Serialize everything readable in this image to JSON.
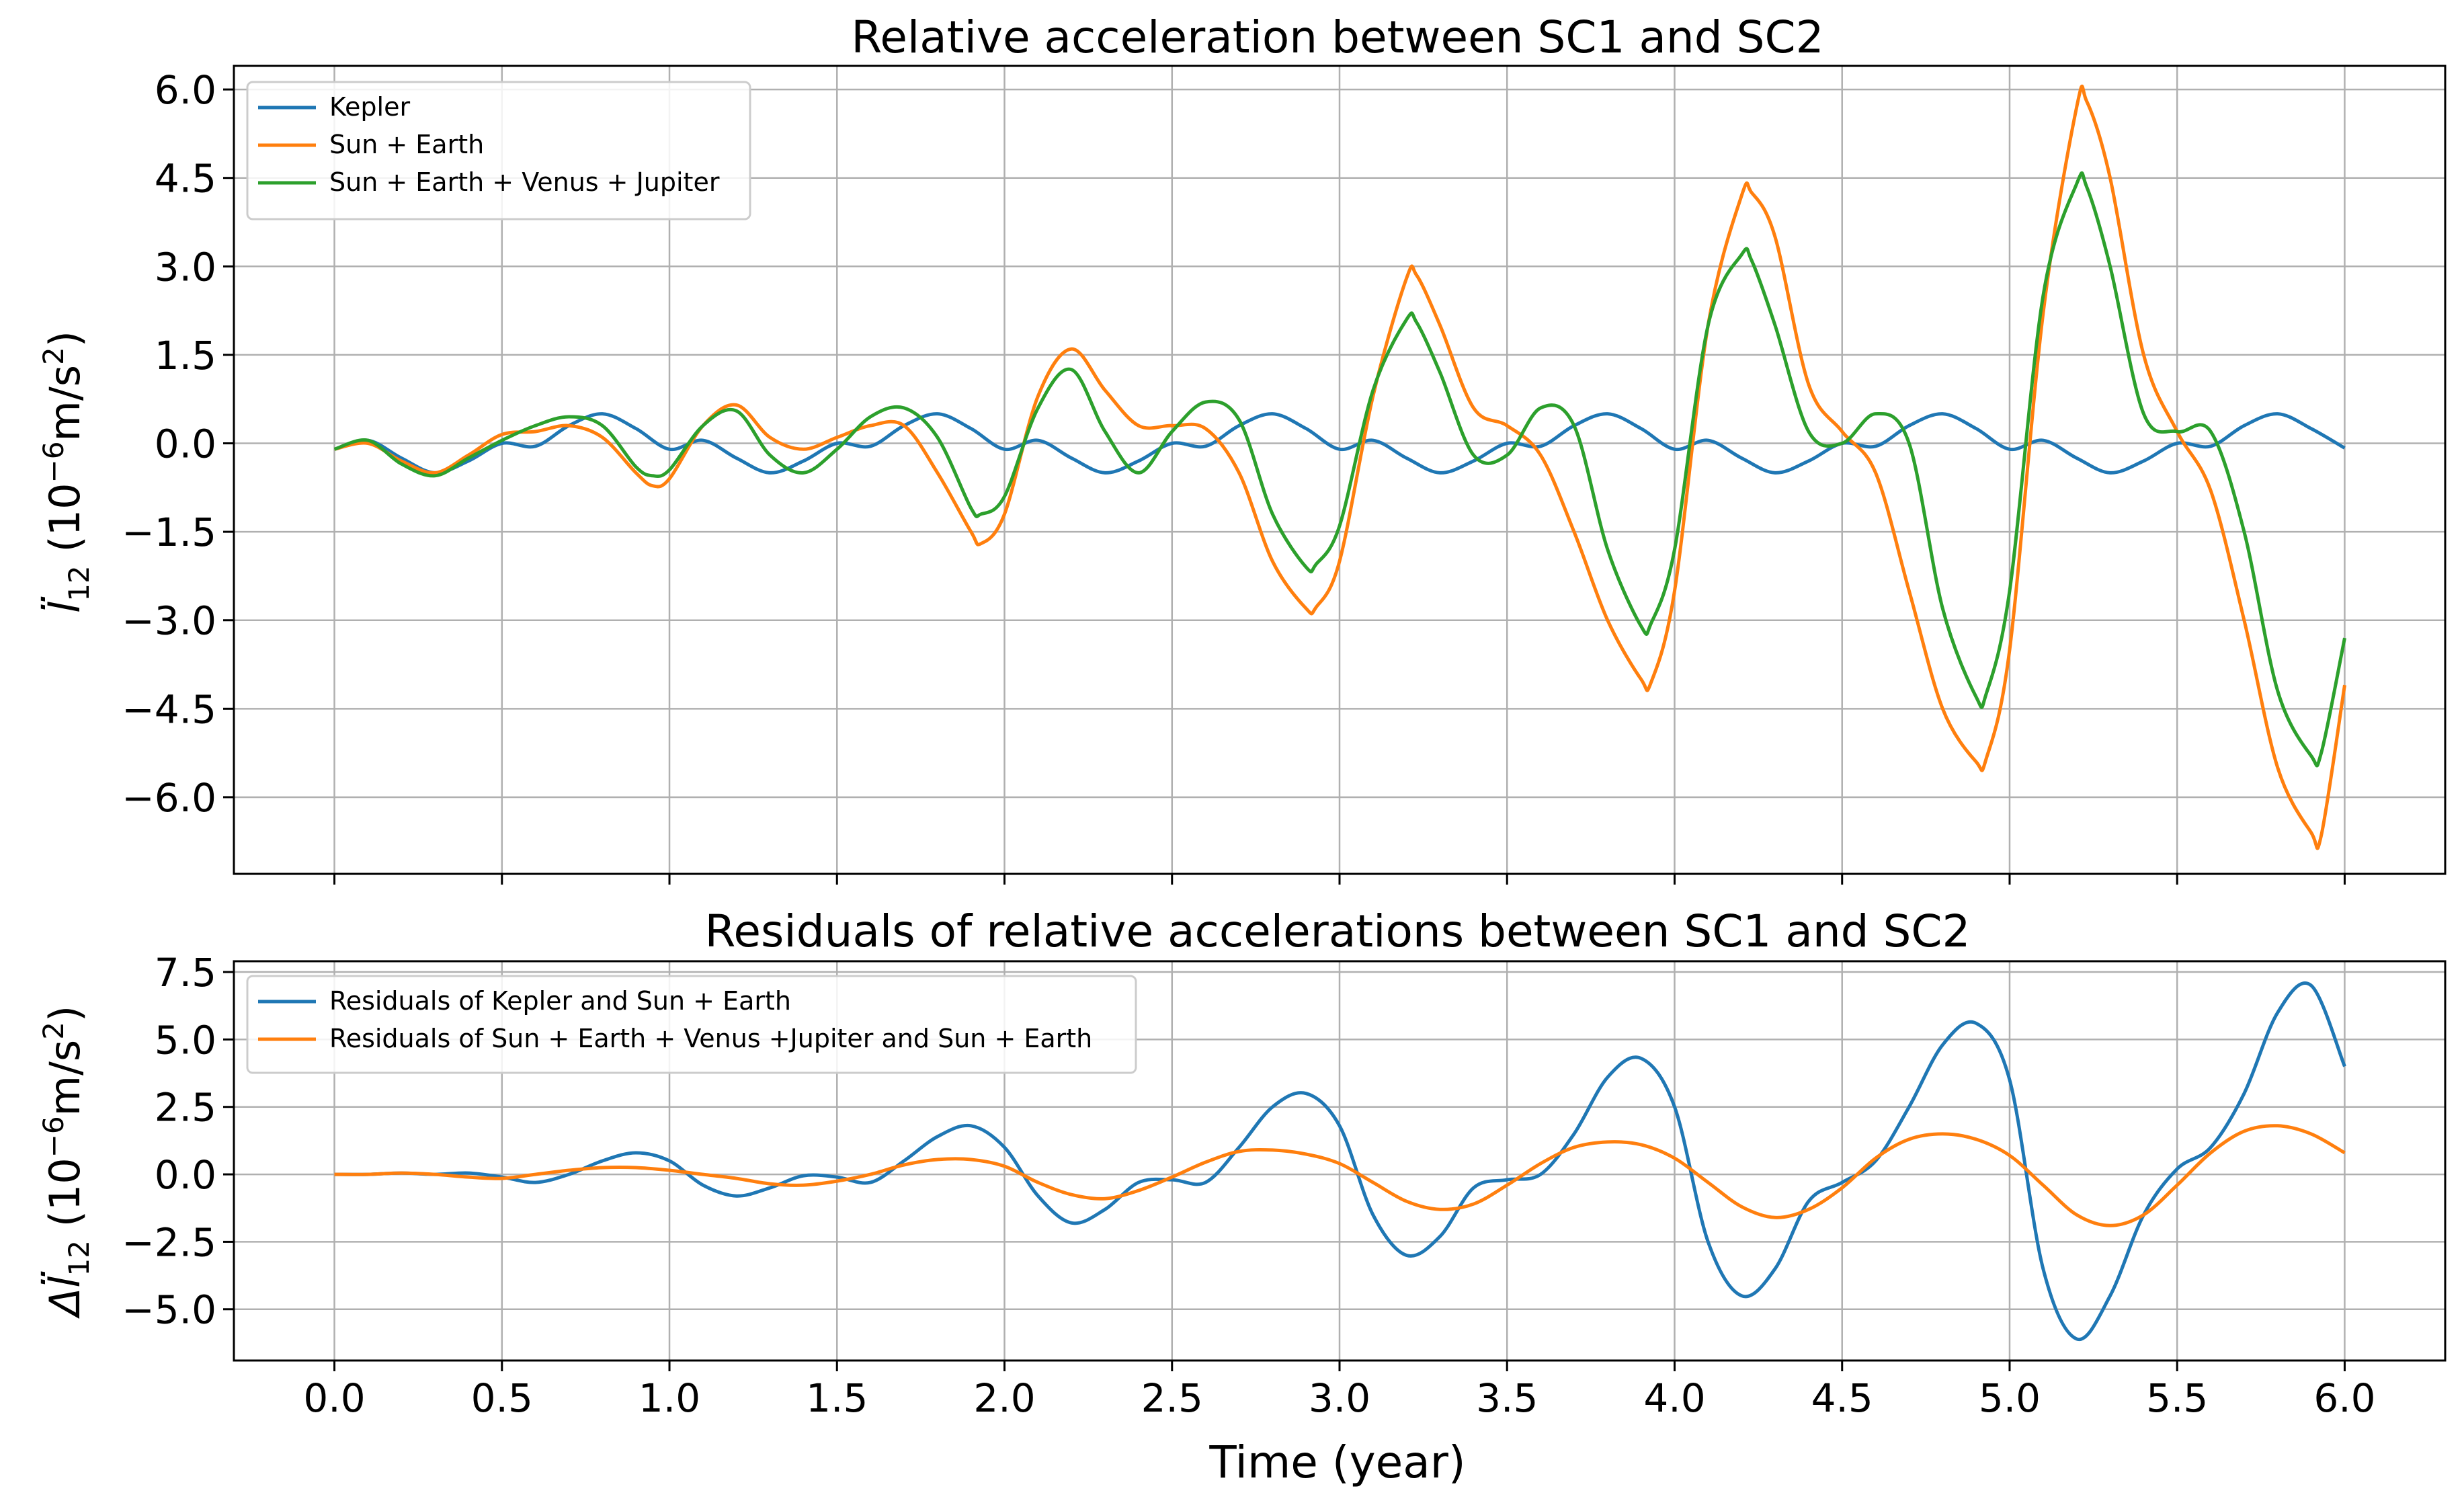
{
  "colors": {
    "blue": "#1f77b4",
    "orange": "#ff7f0e",
    "green": "#2ca02c",
    "grid": "#b0b0b0"
  },
  "chart_data": [
    {
      "type": "line",
      "title": "Relative acceleration between SC1 and SC2",
      "xlabel": "",
      "ylabel_main": "l̈",
      "ylabel_sub": "12",
      "ylabel_unit_pre": "(10",
      "ylabel_unit_exp": "−6",
      "ylabel_unit_mid": "m/s",
      "ylabel_unit_exp2": "2",
      "ylabel_unit_post": ")",
      "xlim": [
        -0.3,
        6.3
      ],
      "ylim": [
        -7.3,
        6.4
      ],
      "xticks": [
        0.0,
        0.5,
        1.0,
        1.5,
        2.0,
        2.5,
        3.0,
        3.5,
        4.0,
        4.5,
        5.0,
        5.5,
        6.0
      ],
      "yticks": [
        6.0,
        4.5,
        3.0,
        1.5,
        0.0,
        -1.5,
        -3.0,
        -4.5,
        -6.0
      ],
      "ytick_labels": [
        "6.0",
        "4.5",
        "3.0",
        "1.5",
        "0.0",
        "−1.5",
        "−3.0",
        "−4.5",
        "−6.0"
      ],
      "grid": true,
      "legend_position": "upper-left",
      "series": [
        {
          "name": "Kepler",
          "color": "#1f77b4",
          "x": [
            0.0,
            0.1,
            0.2,
            0.3,
            0.4,
            0.5,
            0.6,
            0.7,
            0.8,
            0.9,
            1.0,
            1.1,
            1.2,
            1.3,
            1.4,
            1.5,
            1.6,
            1.7,
            1.8,
            1.9,
            2.0,
            2.1,
            2.2,
            2.3,
            2.4,
            2.5,
            2.6,
            2.7,
            2.8,
            2.9,
            3.0,
            3.1,
            3.2,
            3.3,
            3.4,
            3.5,
            3.6,
            3.7,
            3.8,
            3.9,
            4.0,
            4.1,
            4.2,
            4.3,
            4.4,
            4.5,
            4.6,
            4.7,
            4.8,
            4.9,
            5.0,
            5.1,
            5.2,
            5.3,
            5.4,
            5.5,
            5.6,
            5.7,
            5.8,
            5.9,
            6.0
          ],
          "y": [
            -0.1,
            0.05,
            -0.25,
            -0.5,
            -0.3,
            0.0,
            -0.05,
            0.3,
            0.5,
            0.25,
            -0.1,
            0.05,
            -0.25,
            -0.5,
            -0.3,
            0.0,
            -0.05,
            0.3,
            0.5,
            0.25,
            -0.1,
            0.05,
            -0.25,
            -0.5,
            -0.3,
            0.0,
            -0.05,
            0.3,
            0.5,
            0.25,
            -0.1,
            0.05,
            -0.25,
            -0.5,
            -0.3,
            0.0,
            -0.05,
            0.3,
            0.5,
            0.25,
            -0.1,
            0.05,
            -0.25,
            -0.5,
            -0.3,
            0.0,
            -0.05,
            0.3,
            0.5,
            0.25,
            -0.1,
            0.05,
            -0.25,
            -0.5,
            -0.3,
            0.0,
            -0.05,
            0.3,
            0.5,
            0.25,
            -0.08
          ]
        },
        {
          "name": "Sun + Earth",
          "color": "#ff7f0e",
          "x": [
            0.0,
            0.1,
            0.2,
            0.3,
            0.4,
            0.5,
            0.6,
            0.7,
            0.8,
            0.9,
            0.95,
            1.0,
            1.1,
            1.2,
            1.3,
            1.4,
            1.5,
            1.6,
            1.7,
            1.8,
            1.9,
            1.93,
            2.0,
            2.1,
            2.2,
            2.3,
            2.4,
            2.5,
            2.6,
            2.7,
            2.8,
            2.9,
            2.93,
            3.0,
            3.1,
            3.2,
            3.23,
            3.3,
            3.4,
            3.5,
            3.6,
            3.7,
            3.8,
            3.9,
            3.93,
            4.0,
            4.1,
            4.2,
            4.23,
            4.3,
            4.4,
            4.5,
            4.6,
            4.7,
            4.8,
            4.9,
            4.93,
            5.0,
            5.1,
            5.2,
            5.23,
            5.3,
            5.4,
            5.5,
            5.6,
            5.7,
            5.8,
            5.9,
            5.93,
            6.0
          ],
          "y": [
            -0.1,
            0.0,
            -0.3,
            -0.5,
            -0.2,
            0.15,
            0.2,
            0.3,
            0.1,
            -0.5,
            -0.72,
            -0.6,
            0.3,
            0.65,
            0.1,
            -0.1,
            0.1,
            0.3,
            0.3,
            -0.5,
            -1.5,
            -1.7,
            -1.2,
            0.8,
            1.6,
            0.9,
            0.3,
            0.3,
            0.25,
            -0.5,
            -2.0,
            -2.8,
            -2.78,
            -2.0,
            0.8,
            2.8,
            2.85,
            2.0,
            0.6,
            0.3,
            -0.2,
            -1.5,
            -3.0,
            -4.0,
            -4.05,
            -2.5,
            2.0,
            4.2,
            4.25,
            3.5,
            1.0,
            0.2,
            -0.5,
            -2.5,
            -4.5,
            -5.4,
            -5.35,
            -3.5,
            2.2,
            5.7,
            5.8,
            4.5,
            1.5,
            0.2,
            -0.8,
            -3.0,
            -5.5,
            -6.6,
            -6.65,
            -4.1
          ]
        },
        {
          "name": "Sun + Earth + Venus + Jupiter",
          "color": "#2ca02c",
          "x": [
            0.0,
            0.1,
            0.2,
            0.3,
            0.4,
            0.5,
            0.6,
            0.7,
            0.8,
            0.9,
            0.95,
            1.0,
            1.1,
            1.2,
            1.3,
            1.4,
            1.5,
            1.6,
            1.7,
            1.8,
            1.9,
            1.93,
            2.0,
            2.1,
            2.2,
            2.3,
            2.4,
            2.5,
            2.6,
            2.7,
            2.8,
            2.9,
            2.93,
            3.0,
            3.1,
            3.2,
            3.23,
            3.3,
            3.4,
            3.5,
            3.6,
            3.7,
            3.8,
            3.9,
            3.93,
            4.0,
            4.1,
            4.2,
            4.23,
            4.3,
            4.4,
            4.5,
            4.6,
            4.7,
            4.8,
            4.9,
            4.93,
            5.0,
            5.1,
            5.2,
            5.23,
            5.3,
            5.4,
            5.5,
            5.6,
            5.7,
            5.8,
            5.9,
            5.93,
            6.0
          ],
          "y": [
            -0.1,
            0.05,
            -0.35,
            -0.55,
            -0.25,
            0.05,
            0.3,
            0.45,
            0.3,
            -0.4,
            -0.55,
            -0.45,
            0.3,
            0.55,
            -0.2,
            -0.5,
            -0.1,
            0.45,
            0.6,
            0.1,
            -1.1,
            -1.2,
            -0.9,
            0.6,
            1.25,
            0.2,
            -0.5,
            0.2,
            0.7,
            0.4,
            -1.2,
            -2.1,
            -2.05,
            -1.4,
            0.9,
            2.1,
            2.05,
            1.2,
            -0.2,
            -0.2,
            0.6,
            0.3,
            -1.8,
            -3.1,
            -3.05,
            -1.8,
            2.0,
            3.2,
            3.1,
            2.0,
            0.2,
            0.0,
            0.5,
            0.0,
            -2.8,
            -4.3,
            -4.25,
            -2.5,
            2.5,
            4.4,
            4.35,
            3.0,
            0.5,
            0.2,
            0.2,
            -1.5,
            -4.2,
            -5.3,
            -5.25,
            -3.3
          ]
        }
      ]
    },
    {
      "type": "line",
      "title": "Residuals of relative accelerations between SC1 and SC2",
      "xlabel": "Time (year)",
      "ylabel_main": "Δl̈",
      "ylabel_sub": "12",
      "ylabel_unit_pre": "(10",
      "ylabel_unit_exp": "−6",
      "ylabel_unit_mid": "m/s",
      "ylabel_unit_exp2": "2",
      "ylabel_unit_post": ")",
      "xlim": [
        -0.3,
        6.3
      ],
      "ylim": [
        -6.9,
        7.9
      ],
      "xticks": [
        0.0,
        0.5,
        1.0,
        1.5,
        2.0,
        2.5,
        3.0,
        3.5,
        4.0,
        4.5,
        5.0,
        5.5,
        6.0
      ],
      "xtick_labels": [
        "0.0",
        "0.5",
        "1.0",
        "1.5",
        "2.0",
        "2.5",
        "3.0",
        "3.5",
        "4.0",
        "4.5",
        "5.0",
        "5.5",
        "6.0"
      ],
      "yticks": [
        7.5,
        5.0,
        2.5,
        0.0,
        -2.5,
        -5.0
      ],
      "ytick_labels": [
        "7.5",
        "5.0",
        "2.5",
        "0.0",
        "−2.5",
        "−5.0"
      ],
      "grid": true,
      "legend_position": "upper-left",
      "series": [
        {
          "name": "Residuals of Kepler and Sun + Earth",
          "color": "#1f77b4",
          "x": [
            0.0,
            0.1,
            0.2,
            0.3,
            0.4,
            0.5,
            0.6,
            0.7,
            0.8,
            0.9,
            1.0,
            1.1,
            1.2,
            1.3,
            1.4,
            1.5,
            1.6,
            1.7,
            1.8,
            1.9,
            2.0,
            2.1,
            2.2,
            2.3,
            2.4,
            2.5,
            2.6,
            2.7,
            2.8,
            2.9,
            3.0,
            3.1,
            3.2,
            3.3,
            3.4,
            3.5,
            3.6,
            3.7,
            3.8,
            3.9,
            4.0,
            4.1,
            4.2,
            4.3,
            4.4,
            4.5,
            4.6,
            4.7,
            4.8,
            4.9,
            5.0,
            5.1,
            5.2,
            5.3,
            5.4,
            5.5,
            5.6,
            5.7,
            5.8,
            5.9,
            6.0
          ],
          "y": [
            0.0,
            0.0,
            0.05,
            0.0,
            0.05,
            -0.1,
            -0.3,
            0.0,
            0.5,
            0.8,
            0.5,
            -0.4,
            -0.8,
            -0.5,
            -0.05,
            -0.1,
            -0.3,
            0.5,
            1.4,
            1.8,
            1.0,
            -0.8,
            -1.8,
            -1.3,
            -0.3,
            -0.2,
            -0.3,
            1.0,
            2.5,
            3.0,
            1.8,
            -1.5,
            -3.0,
            -2.3,
            -0.5,
            -0.2,
            0.0,
            1.5,
            3.6,
            4.3,
            2.5,
            -2.5,
            -4.5,
            -3.5,
            -1.0,
            -0.3,
            0.5,
            2.5,
            4.8,
            5.6,
            3.5,
            -3.5,
            -6.1,
            -4.5,
            -1.5,
            0.2,
            1.0,
            3.0,
            6.0,
            7.0,
            4.0
          ]
        },
        {
          "name": "Residuals of Sun + Earth + Venus +Jupiter and Sun + Earth",
          "color": "#ff7f0e",
          "x": [
            0.0,
            0.1,
            0.2,
            0.3,
            0.4,
            0.5,
            0.6,
            0.7,
            0.8,
            0.9,
            1.0,
            1.1,
            1.2,
            1.3,
            1.4,
            1.5,
            1.6,
            1.7,
            1.8,
            1.9,
            2.0,
            2.1,
            2.2,
            2.3,
            2.4,
            2.5,
            2.6,
            2.7,
            2.8,
            2.9,
            3.0,
            3.1,
            3.2,
            3.3,
            3.4,
            3.5,
            3.6,
            3.7,
            3.8,
            3.9,
            4.0,
            4.1,
            4.2,
            4.3,
            4.4,
            4.5,
            4.6,
            4.7,
            4.8,
            4.9,
            5.0,
            5.1,
            5.2,
            5.3,
            5.4,
            5.5,
            5.6,
            5.7,
            5.8,
            5.9,
            6.0
          ],
          "y": [
            0.0,
            0.0,
            0.05,
            0.0,
            -0.1,
            -0.15,
            0.0,
            0.15,
            0.25,
            0.25,
            0.15,
            0.0,
            -0.15,
            -0.35,
            -0.4,
            -0.25,
            0.0,
            0.35,
            0.55,
            0.55,
            0.3,
            -0.3,
            -0.75,
            -0.9,
            -0.6,
            -0.1,
            0.45,
            0.85,
            0.9,
            0.75,
            0.4,
            -0.3,
            -1.0,
            -1.3,
            -1.1,
            -0.4,
            0.4,
            1.0,
            1.2,
            1.1,
            0.6,
            -0.3,
            -1.2,
            -1.6,
            -1.3,
            -0.5,
            0.6,
            1.3,
            1.5,
            1.3,
            0.7,
            -0.4,
            -1.5,
            -1.9,
            -1.5,
            -0.4,
            0.8,
            1.6,
            1.8,
            1.5,
            0.8
          ]
        }
      ]
    }
  ]
}
